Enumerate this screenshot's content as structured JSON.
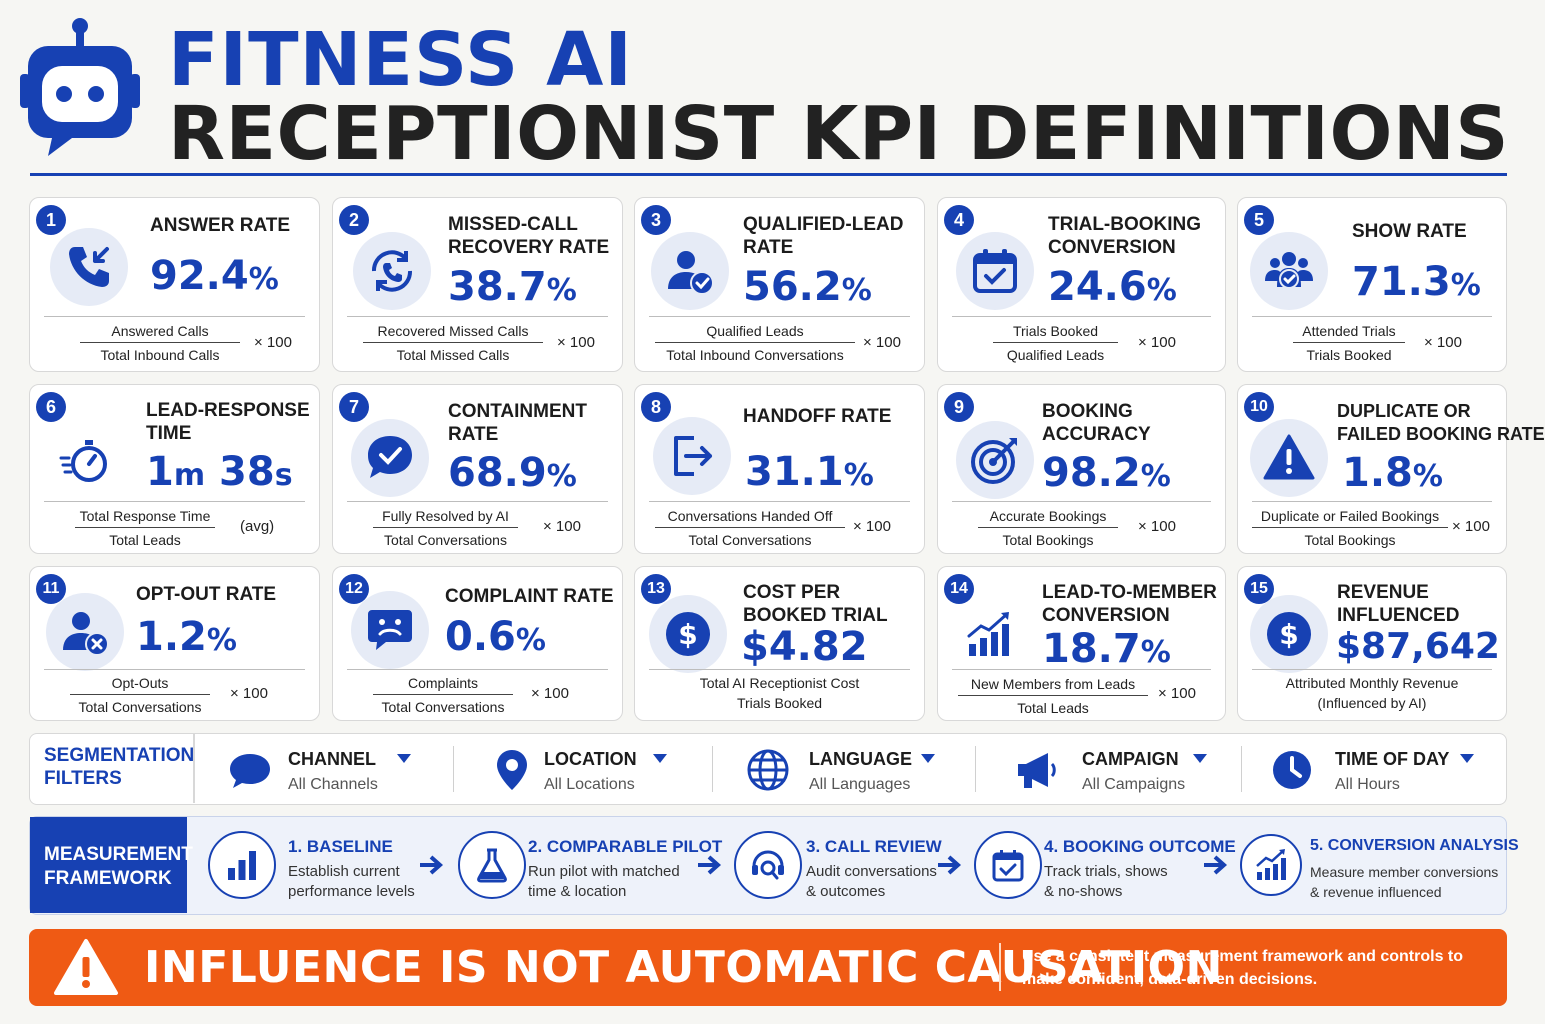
{
  "header": {
    "title_line1": "FITNESS AI",
    "title_line2": "RECEPTIONIST KPI DEFINITIONS",
    "logo_icon": "robot-chat-icon"
  },
  "colors": {
    "primary": "#1741b3",
    "accent": "#ef5a14",
    "background": "#f6f6f3"
  },
  "kpis": [
    {
      "num": "1",
      "name": "ANSWER RATE",
      "value": "92.4",
      "unit": "%",
      "numerator": "Answered Calls",
      "denominator": "Total Inbound Calls",
      "multiplier": "× 100",
      "icon": "phone-incoming-icon"
    },
    {
      "num": "2",
      "name1": "MISSED-CALL",
      "name2": "RECOVERY RATE",
      "value": "38.7",
      "unit": "%",
      "numerator": "Recovered Missed Calls",
      "denominator": "Total Missed Calls",
      "multiplier": "× 100",
      "icon": "phone-recovery-icon"
    },
    {
      "num": "3",
      "name1": "QUALIFIED-LEAD",
      "name2": "RATE",
      "value": "56.2",
      "unit": "%",
      "numerator": "Qualified Leads",
      "denominator": "Total Inbound Conversations",
      "multiplier": "× 100",
      "icon": "user-check-icon"
    },
    {
      "num": "4",
      "name1": "TRIAL-BOOKING",
      "name2": "CONVERSION",
      "value": "24.6",
      "unit": "%",
      "numerator": "Trials Booked",
      "denominator": "Qualified Leads",
      "multiplier": "× 100",
      "icon": "calendar-check-icon"
    },
    {
      "num": "5",
      "name": "SHOW RATE",
      "value": "71.3",
      "unit": "%",
      "numerator": "Attended Trials",
      "denominator": "Trials Booked",
      "multiplier": "× 100",
      "icon": "group-check-icon"
    },
    {
      "num": "6",
      "name1": "LEAD-RESPONSE",
      "name2": "TIME",
      "value_a": "1",
      "unit_a": "m",
      "value_b": "38",
      "unit_b": "s",
      "numerator": "Total Response Time",
      "denominator": "Total Leads",
      "multiplier": "(avg)",
      "icon": "stopwatch-icon"
    },
    {
      "num": "7",
      "name1": "CONTAINMENT",
      "name2": "RATE",
      "value": "68.9",
      "unit": "%",
      "numerator": "Fully Resolved by AI",
      "denominator": "Total Conversations",
      "multiplier": "× 100",
      "icon": "chat-check-icon"
    },
    {
      "num": "8",
      "name": "HANDOFF RATE",
      "value": "31.1",
      "unit": "%",
      "numerator": "Conversations Handed Off",
      "denominator": "Total Conversations",
      "multiplier": "× 100",
      "icon": "handoff-arrow-icon"
    },
    {
      "num": "9",
      "name1": "BOOKING",
      "name2": "ACCURACY",
      "value": "98.2",
      "unit": "%",
      "numerator": "Accurate Bookings",
      "denominator": "Total Bookings",
      "multiplier": "× 100",
      "icon": "target-icon"
    },
    {
      "num": "10",
      "name1": "DUPLICATE OR",
      "name2": "FAILED BOOKING RATE",
      "value": "1.8",
      "unit": "%",
      "numerator": "Duplicate or Failed Bookings",
      "denominator": "Total Bookings",
      "multiplier": "× 100",
      "icon": "warning-triangle-icon"
    },
    {
      "num": "11",
      "name": "OPT-OUT RATE",
      "value": "1.2",
      "unit": "%",
      "numerator": "Opt-Outs",
      "denominator": "Total Conversations",
      "multiplier": "× 100",
      "icon": "user-remove-icon"
    },
    {
      "num": "12",
      "name": "COMPLAINT RATE",
      "value": "0.6",
      "unit": "%",
      "numerator": "Complaints",
      "denominator": "Total Conversations",
      "multiplier": "× 100",
      "icon": "sad-chat-icon"
    },
    {
      "num": "13",
      "name1": "COST PER",
      "name2": "BOOKED TRIAL",
      "value": "$4.82",
      "line1": "Total AI Receptionist Cost",
      "line2": "Trials Booked",
      "icon": "dollar-coin-icon"
    },
    {
      "num": "14",
      "name1": "LEAD-TO-MEMBER",
      "name2": "CONVERSION",
      "value": "18.7",
      "unit": "%",
      "numerator": "New Members from Leads",
      "denominator": "Total Leads",
      "multiplier": "× 100",
      "icon": "bar-chart-up-icon"
    },
    {
      "num": "15",
      "name1": "REVENUE",
      "name2": "INFLUENCED",
      "value": "$87,642",
      "line1": "Attributed Monthly Revenue",
      "line2": "(Influenced by AI)",
      "icon": "dollar-coin-icon"
    }
  ],
  "segmentation": {
    "title": "SEGMENTATION FILTERS",
    "filters": [
      {
        "label": "CHANNEL",
        "value": "All Channels",
        "icon": "chat-bubble-icon"
      },
      {
        "label": "LOCATION",
        "value": "All Locations",
        "icon": "map-pin-icon"
      },
      {
        "label": "LANGUAGE",
        "value": "All Languages",
        "icon": "globe-icon"
      },
      {
        "label": "CAMPAIGN",
        "value": "All Campaigns",
        "icon": "megaphone-icon"
      },
      {
        "label": "TIME OF DAY",
        "value": "All Hours",
        "icon": "clock-icon"
      }
    ]
  },
  "framework": {
    "title": "MEASUREMENT FRAMEWORK",
    "steps": [
      {
        "title": "1. BASELINE",
        "desc1": "Establish current",
        "desc2": "performance levels",
        "icon": "bar-chart-icon"
      },
      {
        "title": "2. COMPARABLE PILOT",
        "desc1": "Run pilot with matched",
        "desc2": "time & location",
        "icon": "flask-icon"
      },
      {
        "title": "3. CALL REVIEW",
        "desc1": "Audit conversations",
        "desc2": "& outcomes",
        "icon": "headset-search-icon"
      },
      {
        "title": "4. BOOKING OUTCOME",
        "desc1": "Track trials, shows",
        "desc2": "& no-shows",
        "icon": "calendar-check-icon"
      },
      {
        "title": "5. CONVERSION ANALYSIS",
        "desc1": "Measure member conversions",
        "desc2": "& revenue influenced",
        "icon": "chart-trend-icon"
      }
    ]
  },
  "banner": {
    "title": "INFLUENCE IS NOT AUTOMATIC CAUSATION",
    "text": "Use a consistent measurement framework and controls to make confident, data-driven decisions.",
    "icon": "warning-triangle-icon"
  }
}
